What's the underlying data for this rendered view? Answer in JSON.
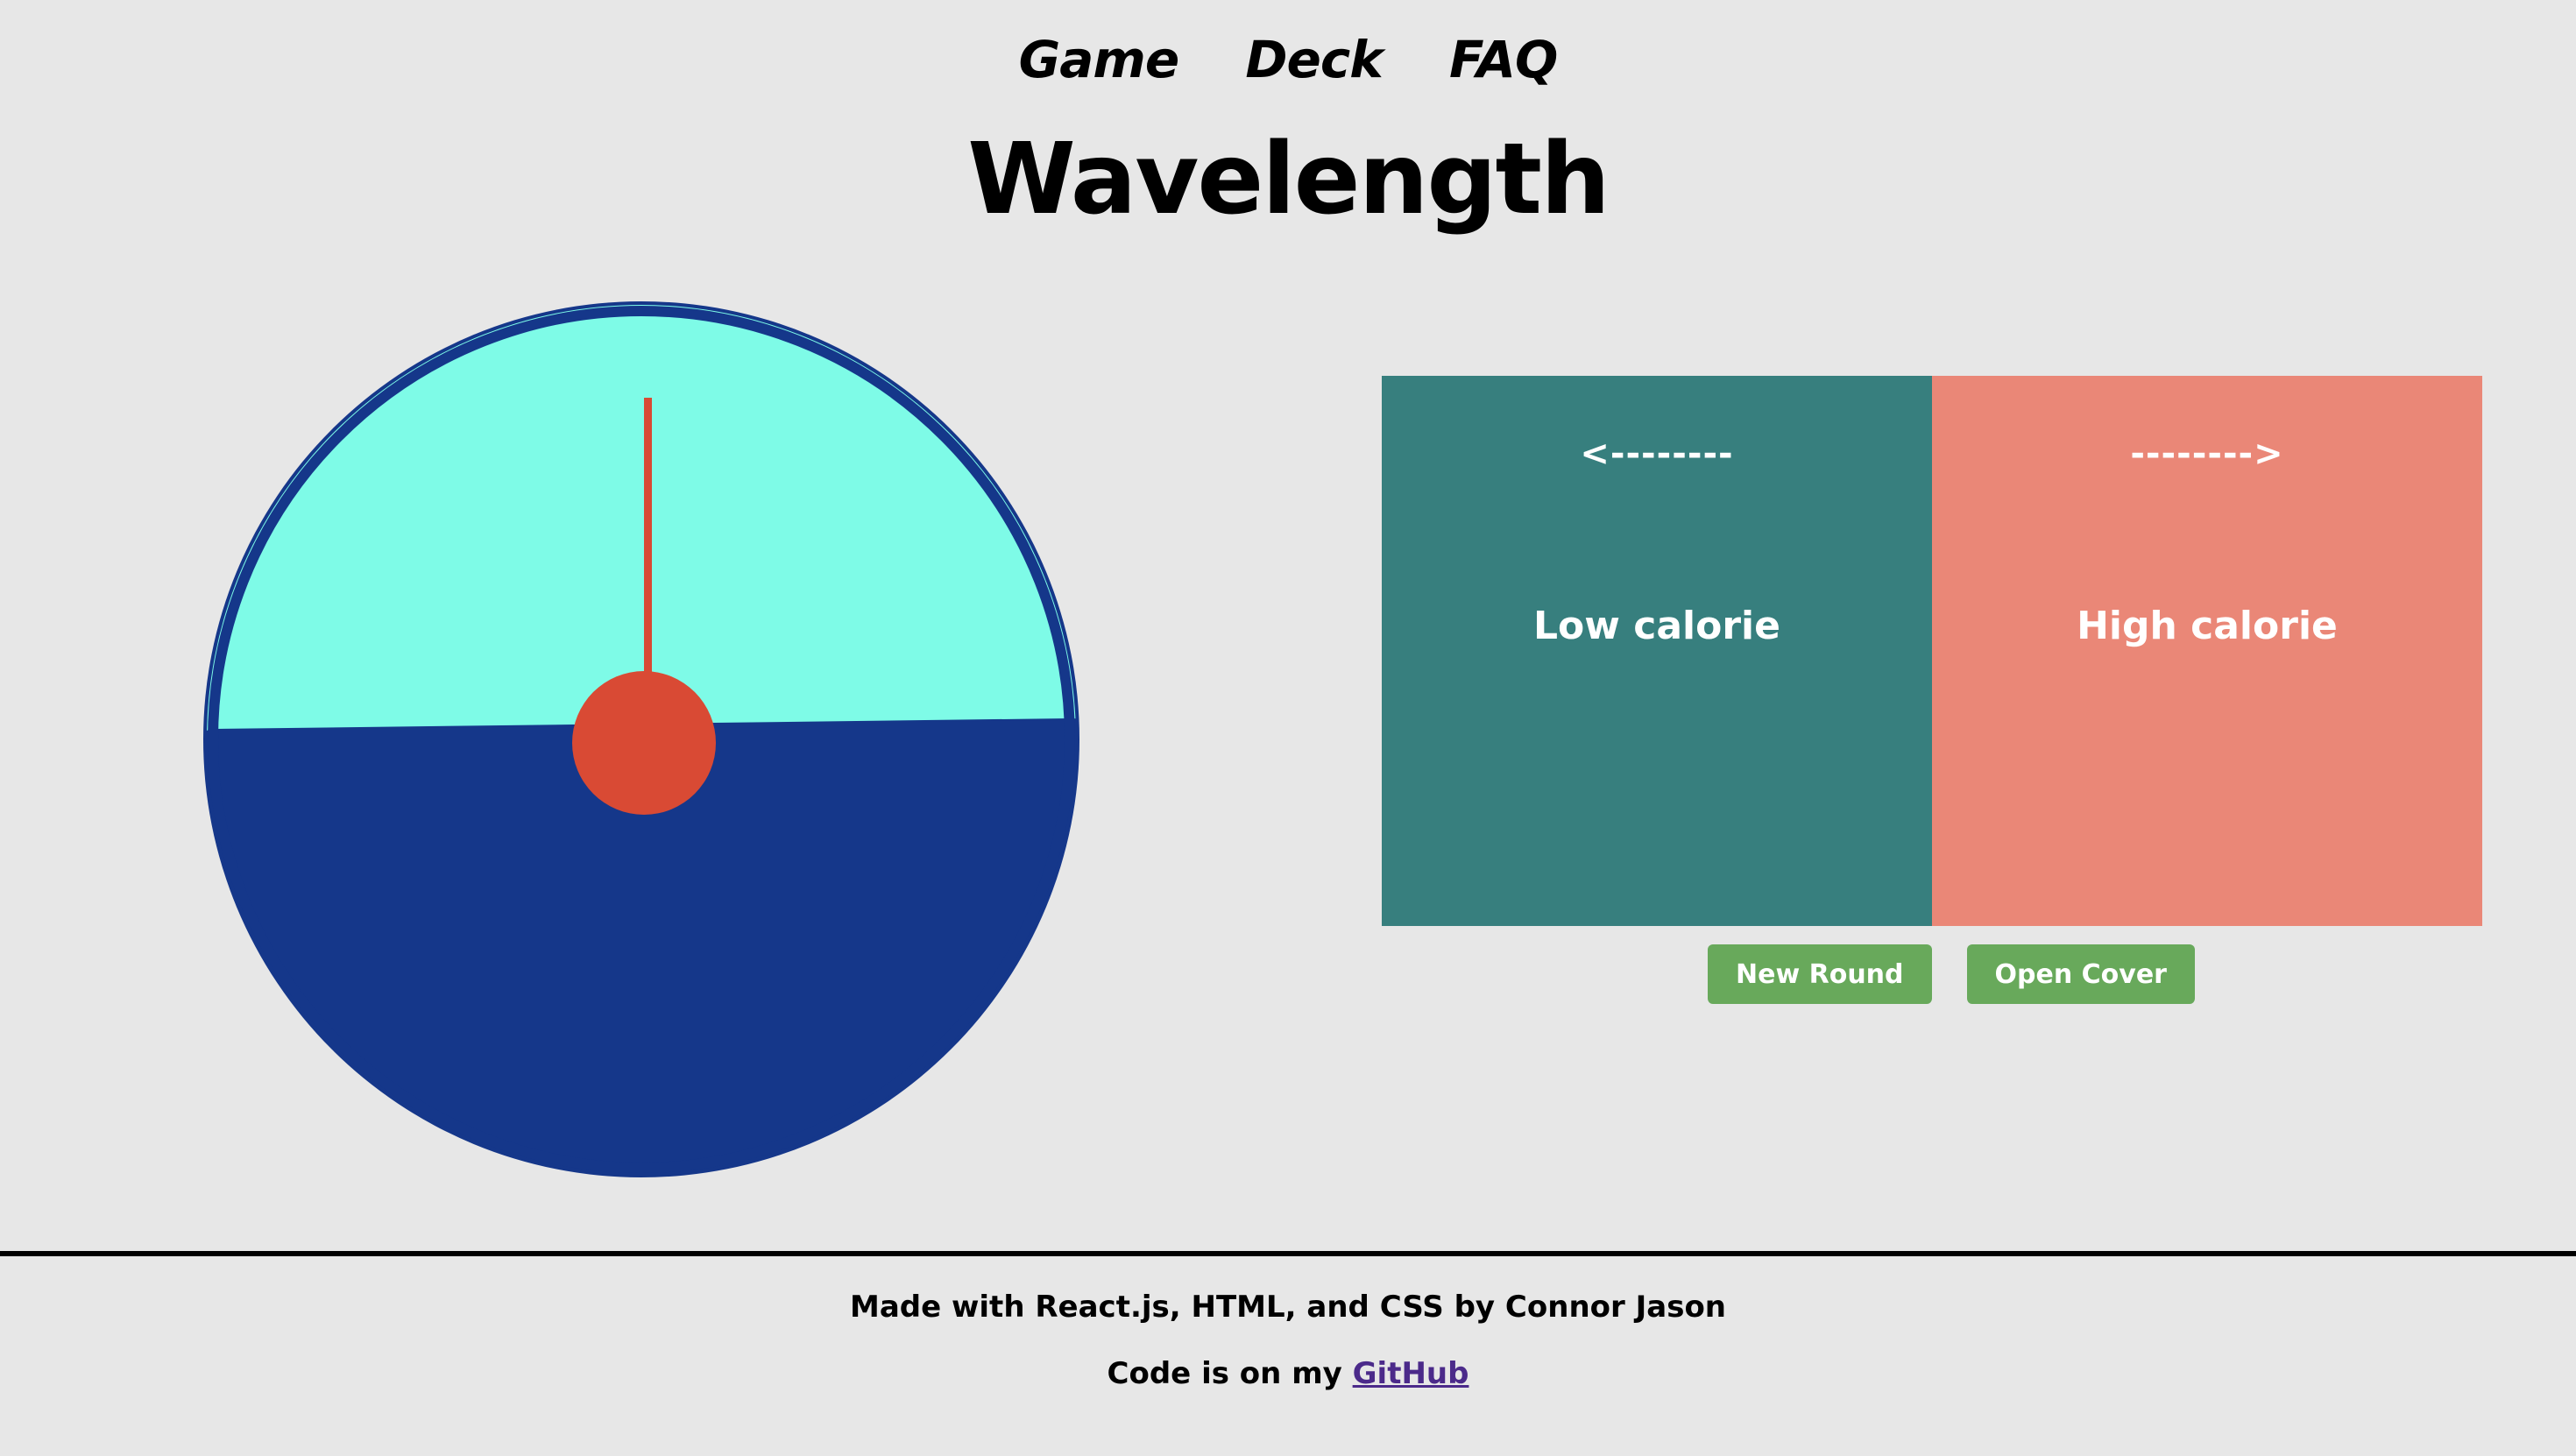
{
  "nav": {
    "items": [
      {
        "label": "Game"
      },
      {
        "label": "Deck"
      },
      {
        "label": "FAQ"
      }
    ]
  },
  "title": "Wavelength",
  "dial": {
    "colors": {
      "screen": "#7efbe7",
      "body": "#15378a",
      "needle": "#d94a34"
    }
  },
  "card": {
    "left": {
      "arrow": "<--------",
      "label": "Low calorie",
      "color": "#377f7e"
    },
    "right": {
      "arrow": "-------->",
      "label": "High calorie",
      "color": "#ea8777"
    }
  },
  "buttons": {
    "new_round": "New Round",
    "open_cover": "Open Cover"
  },
  "footer": {
    "made_with": "Made with React.js, HTML, and CSS by Connor Jason",
    "code_prefix": "Code is on my",
    "github_label": "GitHub"
  }
}
